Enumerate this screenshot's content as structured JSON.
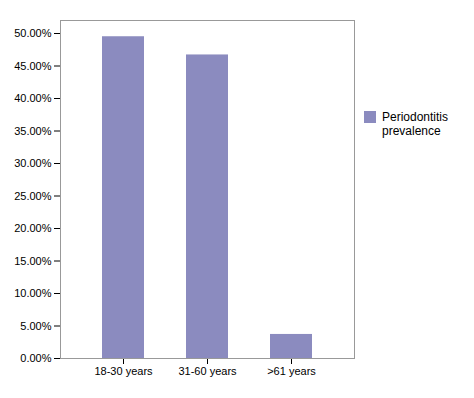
{
  "chart_data": {
    "type": "bar",
    "categories": [
      "18-30 years",
      "31-60 years",
      ">61 years"
    ],
    "series": [
      {
        "name": "Periodontitis\nprevalence",
        "color": "#8b8bbf",
        "values": [
          49.5,
          46.7,
          3.7
        ]
      }
    ],
    "ylim": [
      0,
      52
    ],
    "yticks": [
      {
        "value": 0,
        "label": "0.00%"
      },
      {
        "value": 5,
        "label": "5.00%"
      },
      {
        "value": 10,
        "label": "10.00%"
      },
      {
        "value": 15,
        "label": "15.00%"
      },
      {
        "value": 20,
        "label": "20.00%"
      },
      {
        "value": 25,
        "label": "25.00%"
      },
      {
        "value": 30,
        "label": "30.00%"
      },
      {
        "value": 35,
        "label": "35.00%"
      },
      {
        "value": 40,
        "label": "40.00%"
      },
      {
        "value": 45,
        "label": "45.00%"
      },
      {
        "value": 50,
        "label": "50.00%"
      }
    ],
    "grid": false,
    "legend": "right"
  }
}
